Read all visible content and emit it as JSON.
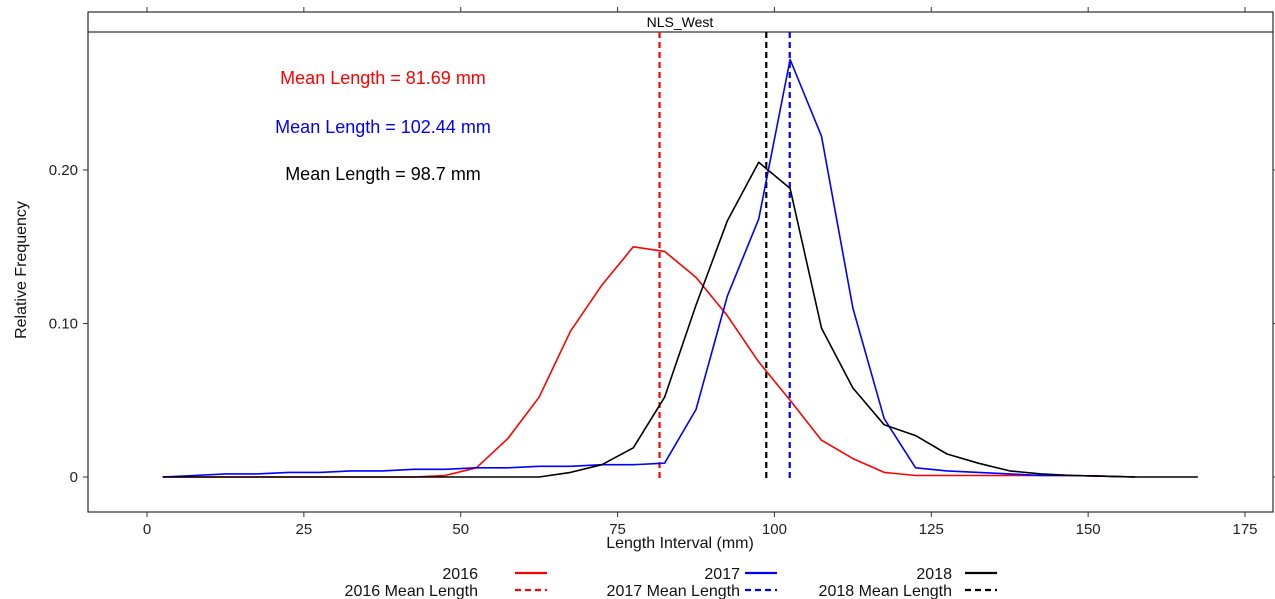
{
  "chart_data": {
    "type": "line",
    "panel_title": "NLS_West",
    "xlabel": "Length Interval (mm)",
    "ylabel": "Relative Frequency",
    "xlim": [
      -8,
      175
    ],
    "ylim": [
      -0.019,
      0.29
    ],
    "xticks": [
      0,
      25,
      50,
      75,
      100,
      125,
      150,
      175
    ],
    "yticks": [
      {
        "value": 0,
        "label": "0"
      },
      {
        "value": 0.1,
        "label": "0.10"
      },
      {
        "value": 0.2,
        "label": "0.20"
      }
    ],
    "series": [
      {
        "name": "2016",
        "color": "#ff0000",
        "x": [
          2.5,
          7.5,
          12.5,
          17.5,
          22.5,
          27.5,
          32.5,
          37.5,
          42.5,
          47.5,
          52.5,
          57.5,
          62.5,
          67.5,
          72.5,
          77.5,
          82.5,
          87.5,
          92.5,
          97.5,
          102.5,
          107.5,
          112.5,
          117.5,
          122.5,
          127.5,
          132.5,
          137.5,
          142.5,
          147.5,
          152.5,
          157.5
        ],
        "y": [
          0,
          0,
          0,
          0,
          0,
          0,
          0,
          0,
          0,
          0.001,
          0.006,
          0.025,
          0.052,
          0.095,
          0.125,
          0.15,
          0.147,
          0.13,
          0.105,
          0.075,
          0.05,
          0.024,
          0.012,
          0.003,
          0.001,
          0.001,
          0.001,
          0.001,
          0.001,
          0.001,
          0.0005,
          0
        ]
      },
      {
        "name": "2017",
        "color": "#0000ff",
        "x": [
          2.5,
          7.5,
          12.5,
          17.5,
          22.5,
          27.5,
          32.5,
          37.5,
          42.5,
          47.5,
          52.5,
          57.5,
          62.5,
          67.5,
          72.5,
          77.5,
          82.5,
          87.5,
          92.5,
          97.5,
          102.5,
          107.5,
          112.5,
          117.5,
          122.5,
          127.5,
          132.5,
          137.5,
          142.5,
          147.5,
          152.5,
          157.5
        ],
        "y": [
          0,
          0.001,
          0.002,
          0.002,
          0.003,
          0.003,
          0.004,
          0.004,
          0.005,
          0.005,
          0.006,
          0.006,
          0.007,
          0.007,
          0.008,
          0.008,
          0.009,
          0.044,
          0.118,
          0.168,
          0.272,
          0.222,
          0.11,
          0.038,
          0.006,
          0.004,
          0.003,
          0.002,
          0.001,
          0.001,
          0.0005,
          0
        ]
      },
      {
        "name": "2018",
        "color": "#000000",
        "x": [
          2.5,
          7.5,
          12.5,
          17.5,
          22.5,
          27.5,
          32.5,
          37.5,
          42.5,
          47.5,
          52.5,
          57.5,
          62.5,
          67.5,
          72.5,
          77.5,
          82.5,
          87.5,
          92.5,
          97.5,
          102.5,
          107.5,
          112.5,
          117.5,
          122.5,
          127.5,
          132.5,
          137.5,
          142.5,
          147.5,
          152.5,
          157.5,
          162.5,
          167.5
        ],
        "y": [
          0,
          0,
          0,
          0,
          0,
          0,
          0,
          0,
          0,
          0,
          0,
          0,
          0,
          0.003,
          0.008,
          0.019,
          0.052,
          0.112,
          0.167,
          0.205,
          0.188,
          0.097,
          0.058,
          0.034,
          0.027,
          0.015,
          0.009,
          0.004,
          0.002,
          0.001,
          0.0005,
          0,
          0,
          0
        ]
      }
    ],
    "mean_lines": [
      {
        "name": "2016 Mean Length",
        "x": 81.69,
        "color": "#ff0000"
      },
      {
        "name": "2017 Mean Length",
        "x": 102.44,
        "color": "#0000ff"
      },
      {
        "name": "2018 Mean Length",
        "x": 98.7,
        "color": "#000000"
      }
    ],
    "annotations": [
      {
        "text": "Mean Length = 81.69 mm",
        "color": "#ff0000"
      },
      {
        "text": "Mean Length = 102.44 mm",
        "color": "#0000ff"
      },
      {
        "text": "Mean Length = 98.7 mm",
        "color": "#000000"
      }
    ],
    "legend": {
      "placement": "bottom",
      "entries": [
        {
          "label": "2016",
          "color": "#ff0000",
          "style": "solid"
        },
        {
          "label": "2017",
          "color": "#0000ff",
          "style": "solid"
        },
        {
          "label": "2018",
          "color": "#000000",
          "style": "solid"
        },
        {
          "label": "2016 Mean Length",
          "color": "#ff0000",
          "style": "dashed"
        },
        {
          "label": "2017 Mean Length",
          "color": "#0000ff",
          "style": "dashed"
        },
        {
          "label": "2018 Mean Length",
          "color": "#000000",
          "style": "dashed"
        }
      ]
    },
    "grid": false
  }
}
